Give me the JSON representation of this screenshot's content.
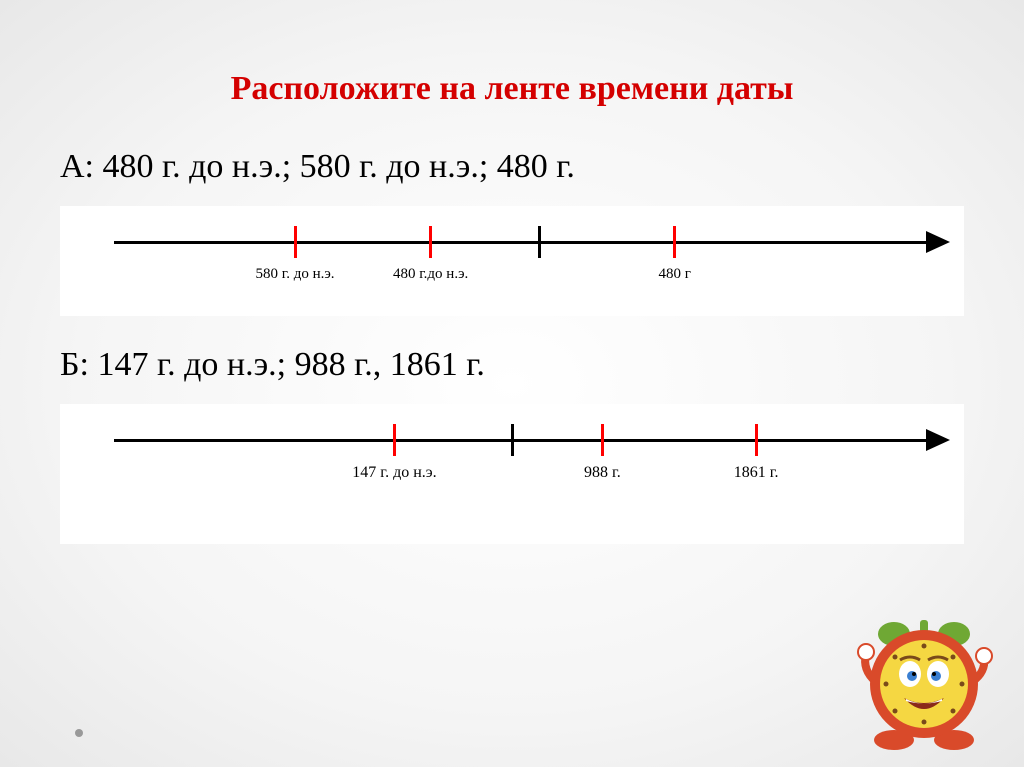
{
  "title": {
    "text": "Расположите на ленте времени даты",
    "color": "#d40000",
    "fontsize": 34
  },
  "problemA": {
    "label": "А: 480 г. до н.э.;  580 г. до н.э.;  480 г.",
    "fontsize": 34,
    "color": "#000000",
    "timeline": {
      "axis_start_pct": 6,
      "axis_end_pct": 96,
      "axis_color": "#000000",
      "arrow_color": "#000000",
      "ticks": [
        {
          "pos_pct": 26,
          "color": "#ff0000",
          "label": "580 г. до н.э.",
          "label_fs": 15
        },
        {
          "pos_pct": 41,
          "color": "#ff0000",
          "label": "480 г.до н.э.",
          "label_fs": 15
        },
        {
          "pos_pct": 53,
          "color": "#000000",
          "label": "",
          "label_fs": 15
        },
        {
          "pos_pct": 68,
          "color": "#ff0000",
          "label": "480  г",
          "label_fs": 15
        }
      ]
    }
  },
  "problemB": {
    "label": "Б: 147 г. до н.э.; 988  г., 1861 г.",
    "fontsize": 34,
    "color": "#000000",
    "timeline": {
      "axis_start_pct": 6,
      "axis_end_pct": 96,
      "axis_color": "#000000",
      "arrow_color": "#000000",
      "ticks": [
        {
          "pos_pct": 37,
          "color": "#ff0000",
          "label": "147 г. до н.э.",
          "label_fs": 16
        },
        {
          "pos_pct": 50,
          "color": "#000000",
          "label": "",
          "label_fs": 16
        },
        {
          "pos_pct": 60,
          "color": "#ff0000",
          "label": "988 г.",
          "label_fs": 16
        },
        {
          "pos_pct": 77,
          "color": "#ff0000",
          "label": "1861 г.",
          "label_fs": 16
        }
      ]
    }
  },
  "clock": {
    "face_color": "#f5d742",
    "rim_color": "#d94a2a",
    "bell_color": "#6fa834",
    "eye_color": "#3a7fd1",
    "mouth_color": "#ffffff",
    "foot_color": "#d94a2a"
  }
}
